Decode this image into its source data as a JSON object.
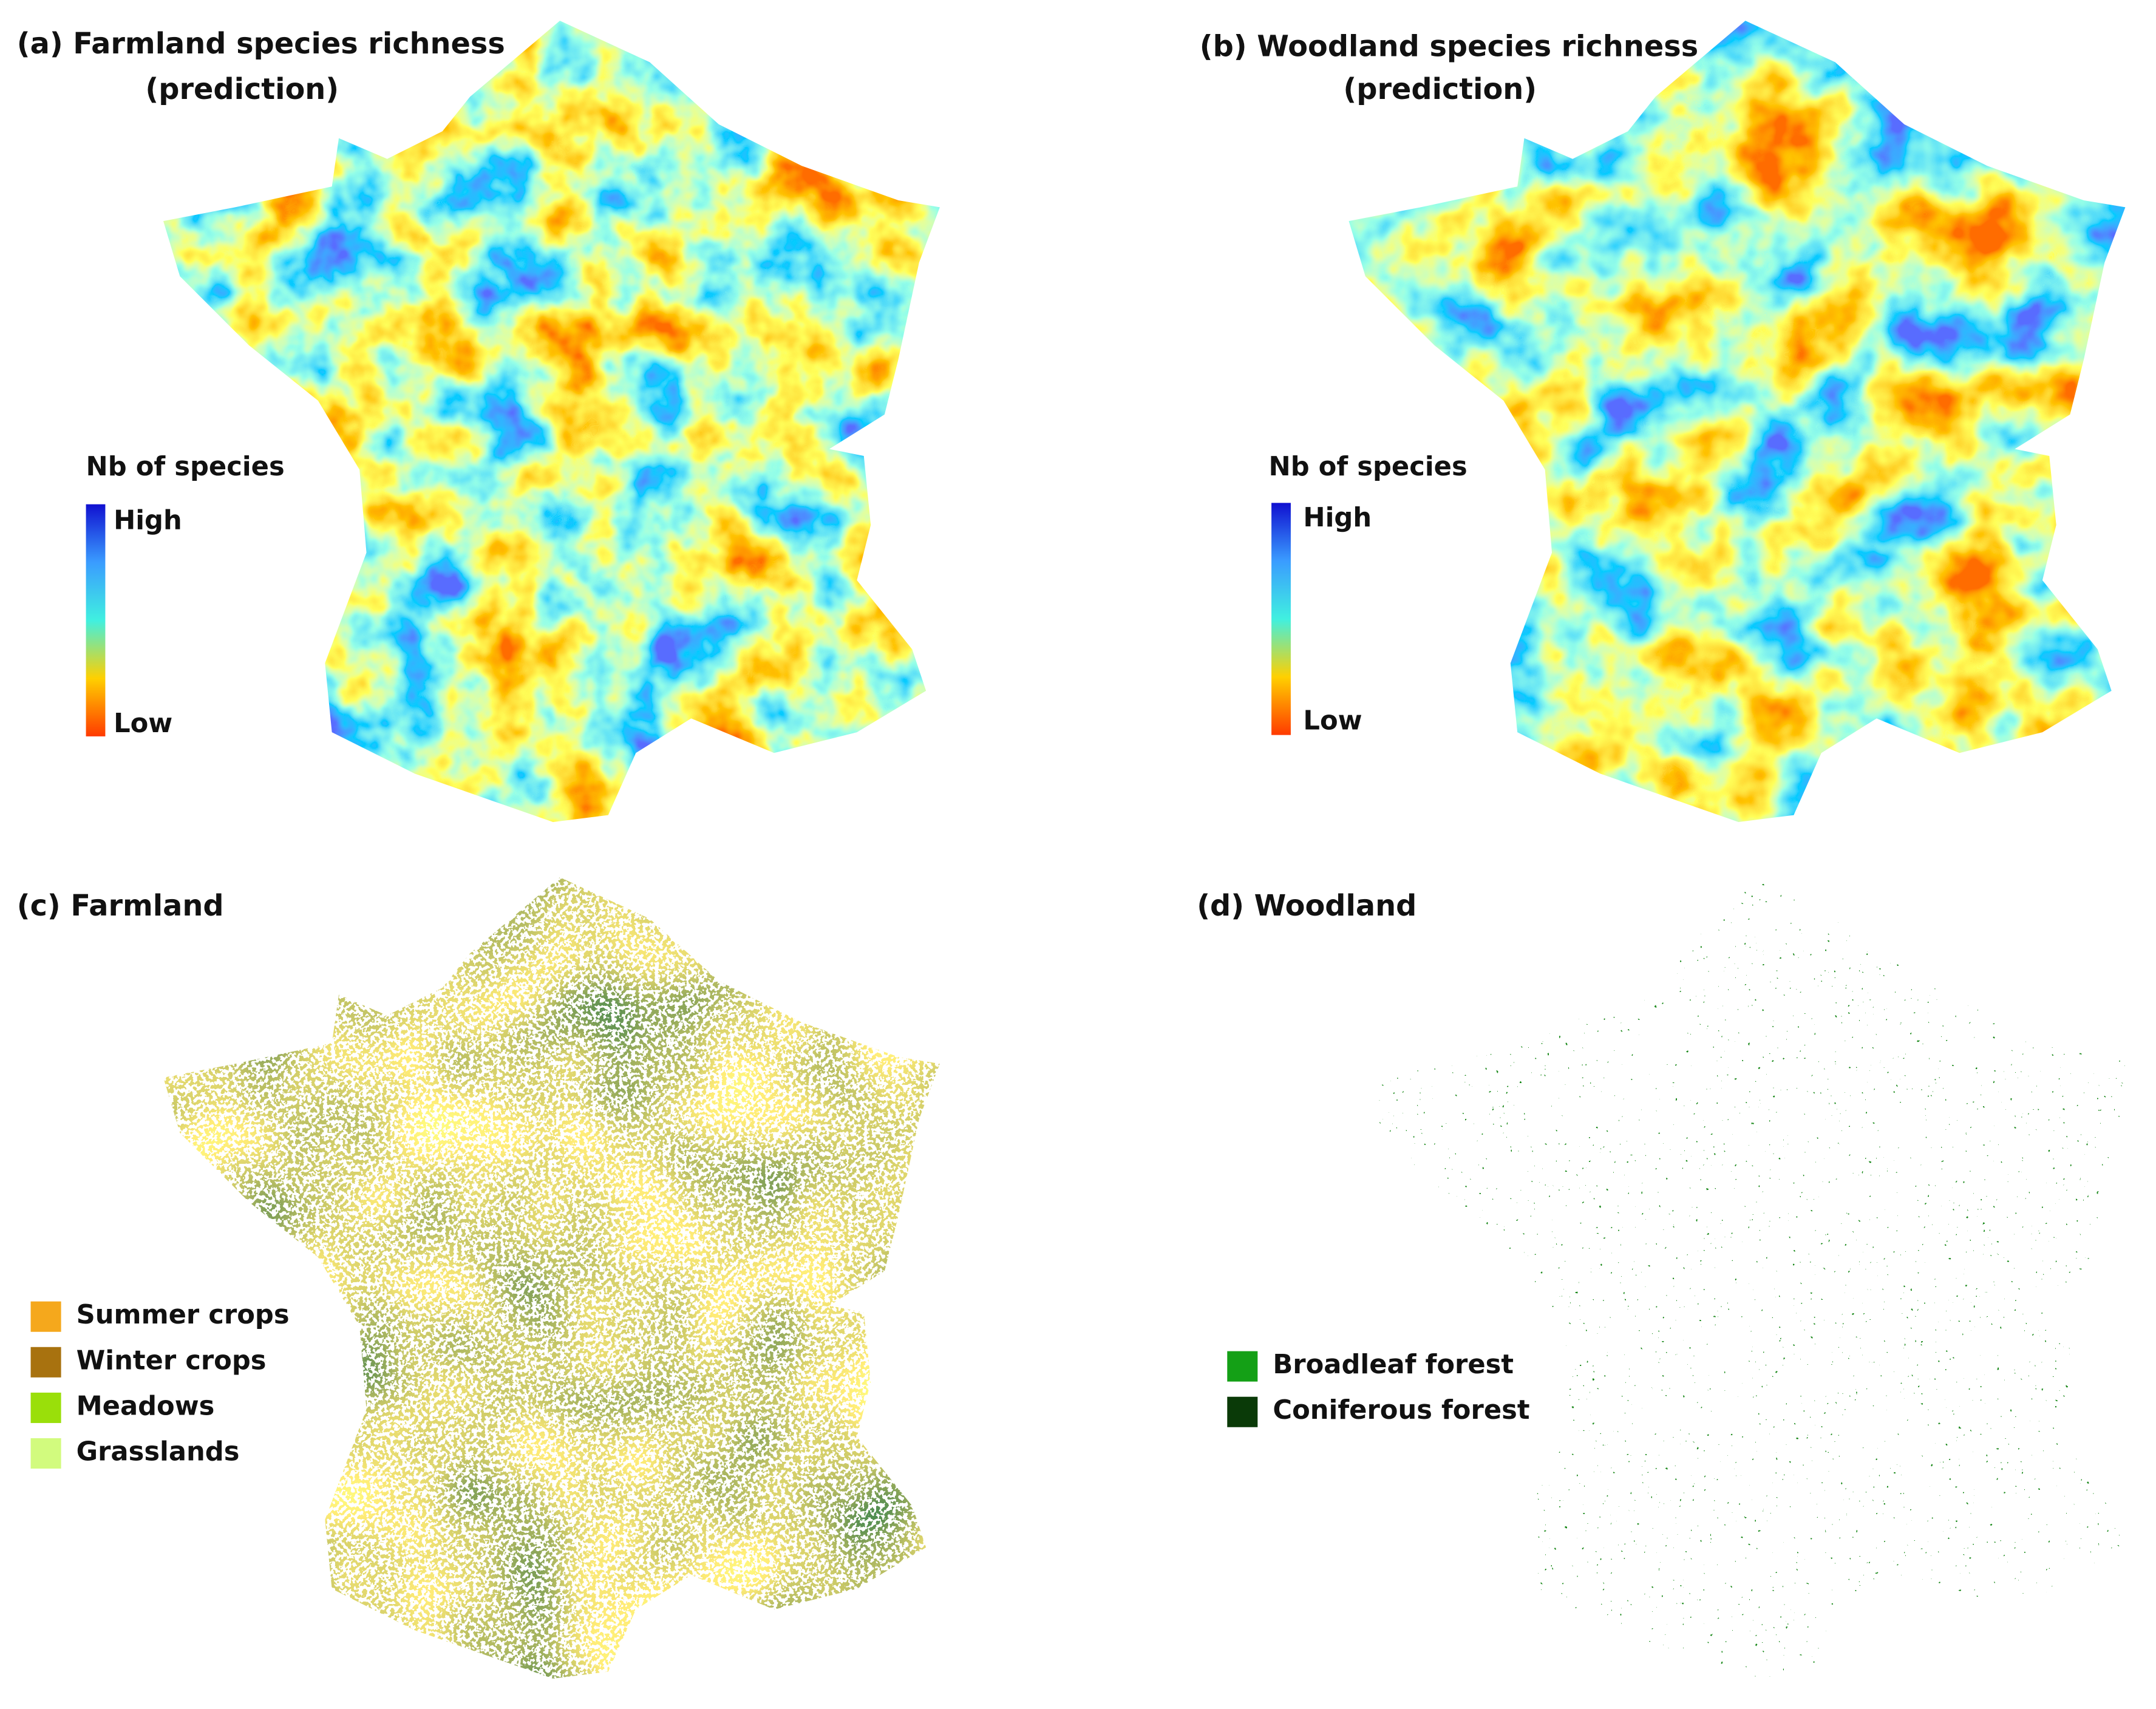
{
  "panels": [
    {
      "title": "(a) Farmland species richness",
      "subtitle": "(prediction)",
      "legend": {
        "title": "Nb of species",
        "high": "High",
        "low": "Low"
      }
    },
    {
      "title": "(b) Woodland species richness",
      "subtitle": "(prediction)",
      "legend": {
        "title": "Nb of species",
        "high": "High",
        "low": "Low"
      }
    },
    {
      "title": "(c) Farmland",
      "legend": [
        {
          "label": "Summer crops",
          "color": "#f5a81c"
        },
        {
          "label": "Winter crops",
          "color": "#a8720f"
        },
        {
          "label": "Meadows",
          "color": "#9adf0a"
        },
        {
          "label": "Grasslands",
          "color": "#d2fb7e"
        }
      ]
    },
    {
      "title": "(d) Woodland",
      "legend": [
        {
          "label": "Broadleaf forest",
          "color": "#14a016"
        },
        {
          "label": "Coniferous forest",
          "color": "#0a3a08"
        }
      ]
    }
  ]
}
